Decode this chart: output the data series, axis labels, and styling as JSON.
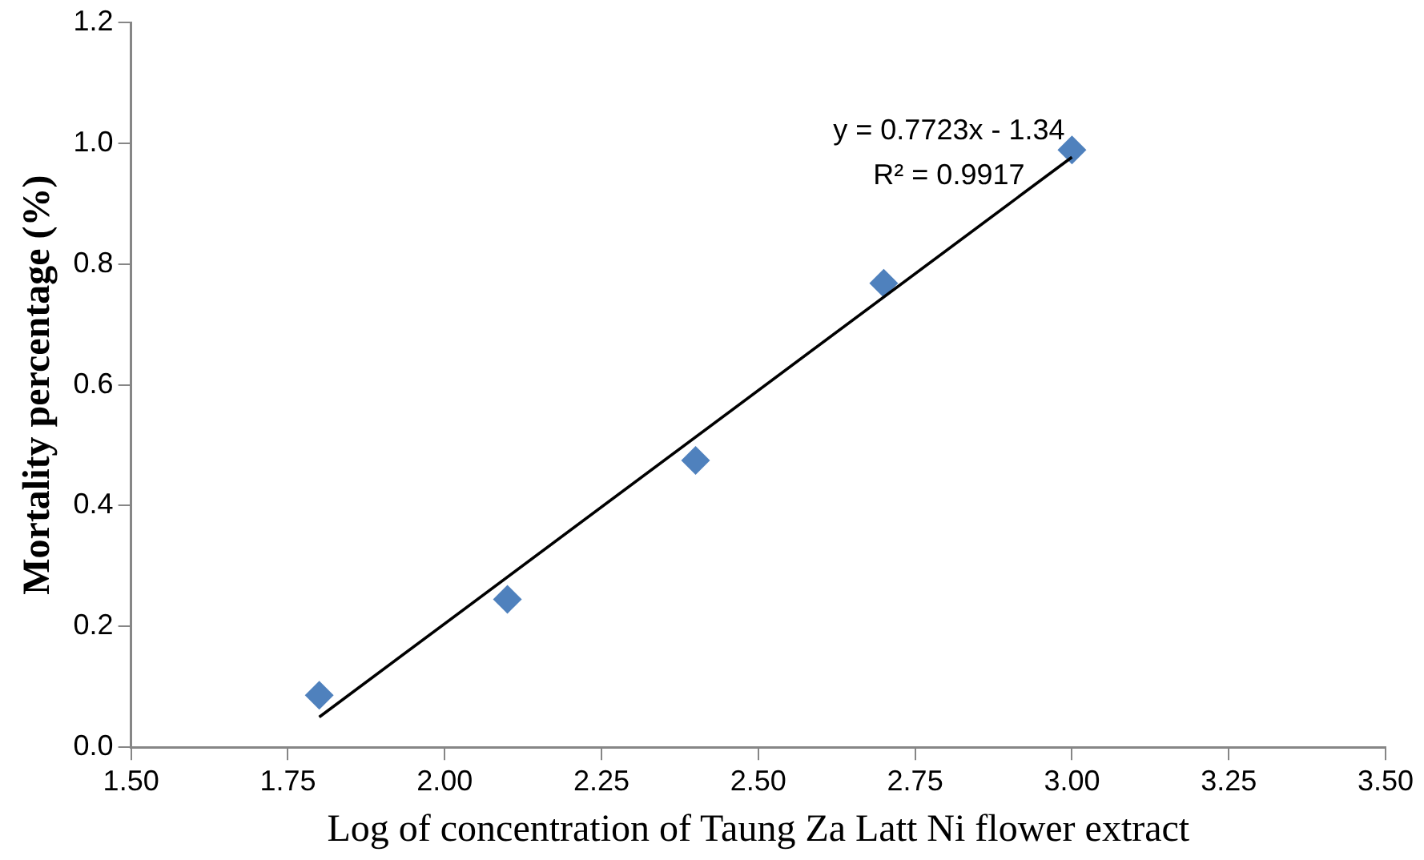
{
  "chart_data": {
    "type": "scatter",
    "xlabel": "Log of concentration of Taung Za Latt Ni flower extract",
    "ylabel": "Mortality percentage (%)",
    "series": [
      {
        "color": "#4f81bd",
        "marker": "diamond",
        "x": [
          1.8,
          2.1,
          2.4,
          2.7,
          3.0
        ],
        "values": [
          0.086,
          0.245,
          0.475,
          0.768,
          0.989
        ]
      },
      {
        "type": "line",
        "color": "#000000",
        "marker": "none",
        "line_style": "solid",
        "x": [
          1.8,
          3.0
        ],
        "values": [
          0.05,
          0.977
        ]
      }
    ],
    "xlim": [
      1.5,
      3.5
    ],
    "xticks": [
      {
        "value": 1.5,
        "label": "1.50"
      },
      {
        "value": 1.75,
        "label": "1.75"
      },
      {
        "value": 2.0,
        "label": "2.00"
      },
      {
        "value": 2.25,
        "label": "2.25"
      },
      {
        "value": 2.5,
        "label": "2.50"
      },
      {
        "value": 2.75,
        "label": "2.75"
      },
      {
        "value": 3.0,
        "label": "3.00"
      },
      {
        "value": 3.25,
        "label": "3.25"
      },
      {
        "value": 3.5,
        "label": "3.50"
      }
    ],
    "ylim": [
      0,
      1.2
    ],
    "yticks": [
      {
        "value": 0,
        "label": "0.0"
      },
      {
        "value": 0.2,
        "label": "0.2"
      },
      {
        "value": 0.4,
        "label": "0.4"
      },
      {
        "value": 0.6,
        "label": "0.6"
      },
      {
        "value": 0.8,
        "label": "0.8"
      },
      {
        "value": 1.0,
        "label": "1.0"
      },
      {
        "value": 1.2,
        "label": "1.2"
      }
    ],
    "annotations": [
      "y = 0.7723x - 1.34",
      "R² = 0.9917"
    ],
    "grid": false,
    "legend": false
  }
}
